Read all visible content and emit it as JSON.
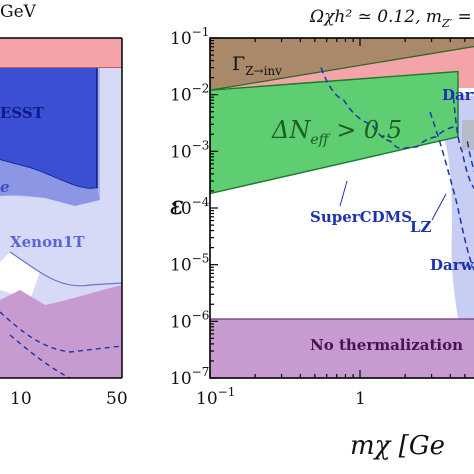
{
  "left_panel": {
    "header_fragment": "GeV",
    "x_tick_labels": [
      "10",
      "50"
    ],
    "regions": [
      {
        "name": "ESST",
        "label": "ESST",
        "color": "#2f4ccf"
      },
      {
        "name": "e-fragment",
        "label": "e",
        "color": "#7f88e0"
      },
      {
        "name": "Xenon1T",
        "label": "Xenon1T",
        "color": "#5a66d8"
      }
    ]
  },
  "right_panel": {
    "title": "Ω_χh² ≃ 0.12, m_Z′ =",
    "title_parts": {
      "main": "Ωχh² ≃ 0.12, m",
      "sub": "Z′",
      "tail": " ="
    },
    "y_axis": {
      "label": "ε",
      "scale": "log",
      "range": [
        1e-07,
        0.1
      ]
    },
    "x_axis": {
      "label": "mχ [Ge",
      "scale": "log",
      "range": [
        0.1,
        10
      ]
    },
    "y_tick_labels": [
      {
        "base": "10",
        "exp": "−1"
      },
      {
        "base": "10",
        "exp": "−2"
      },
      {
        "base": "10",
        "exp": "−3"
      },
      {
        "base": "10",
        "exp": "−4"
      },
      {
        "base": "10",
        "exp": "−5"
      },
      {
        "base": "10",
        "exp": "−6"
      },
      {
        "base": "10",
        "exp": "−7"
      }
    ],
    "x_tick_labels": [
      {
        "base": "10",
        "exp": "−1"
      },
      {
        "base": "1",
        "exp": ""
      }
    ],
    "region_labels": {
      "gamma": {
        "main": "Γ",
        "sub": "Z→inv"
      },
      "dneff": {
        "main": "ΔN",
        "sub": "eff",
        "tail": " > 0.5"
      },
      "no_thermalization": "No thermalization",
      "darw_top": "Darw",
      "darw_bottom": "Darw"
    },
    "curve_labels": {
      "supercdms": "SuperCDMS",
      "lz": "LZ"
    }
  },
  "chart_data": [
    {
      "type": "area",
      "panel": "left (partially visible)",
      "x_scale": "log",
      "x_tick_labels": [
        "10",
        "50"
      ],
      "series": [
        {
          "name": "ESST",
          "color": "#3346d2"
        },
        {
          "name": "Xenon1T",
          "color": "#c5caf5"
        }
      ]
    },
    {
      "type": "area",
      "panel": "right",
      "title": "Ωχh² ≃ 0.12, mZ′ =",
      "xlabel": "mχ [Ge",
      "ylabel": "ε",
      "x_scale": "log",
      "y_scale": "log",
      "xlim": [
        0.1,
        10
      ],
      "ylim": [
        1e-07,
        0.1
      ],
      "regions": [
        {
          "name": "ΓZ→inv",
          "color": "#a9896a",
          "boundary_x": [
            0.1,
            10
          ],
          "boundary_y": [
            0.012,
            0.09
          ]
        },
        {
          "name": "ΔNeff > 0.5",
          "color": "#5fce72",
          "upper_x": [
            0.1,
            10
          ],
          "upper_y": [
            0.012,
            0.03
          ],
          "lower_x": [
            0.1,
            4.5
          ],
          "lower_y": [
            0.00018,
            0.0018
          ]
        },
        {
          "name": "No thermalization",
          "color": "#c79bd0",
          "y_range": [
            1e-07,
            1.1e-06
          ]
        },
        {
          "name": "Darw",
          "color": "#c7cdf3"
        }
      ],
      "curves": [
        {
          "name": "SuperCDMS",
          "style": "dashed",
          "color": "#1c33b0",
          "x": [
            0.55,
            0.78,
            1.2,
            1.6,
            1.9,
            2.4,
            3.2,
            4.5
          ],
          "y": [
            0.03,
            0.008,
            0.003,
            0.0015,
            0.0011,
            0.0012,
            0.0018,
            0.0028
          ]
        },
        {
          "name": "LZ",
          "style": "dashed",
          "color": "#1c33b0",
          "x": [
            4.2,
            4.8,
            6.0
          ],
          "y": [
            0.009,
            0.001,
            0.0002
          ]
        },
        {
          "name": "Darw",
          "style": "dashed",
          "color": "#1c33b0",
          "x": [
            5.2,
            6.5,
            8.0
          ],
          "y": [
            0.0015,
            0.00025,
            4e-05
          ]
        }
      ]
    }
  ]
}
